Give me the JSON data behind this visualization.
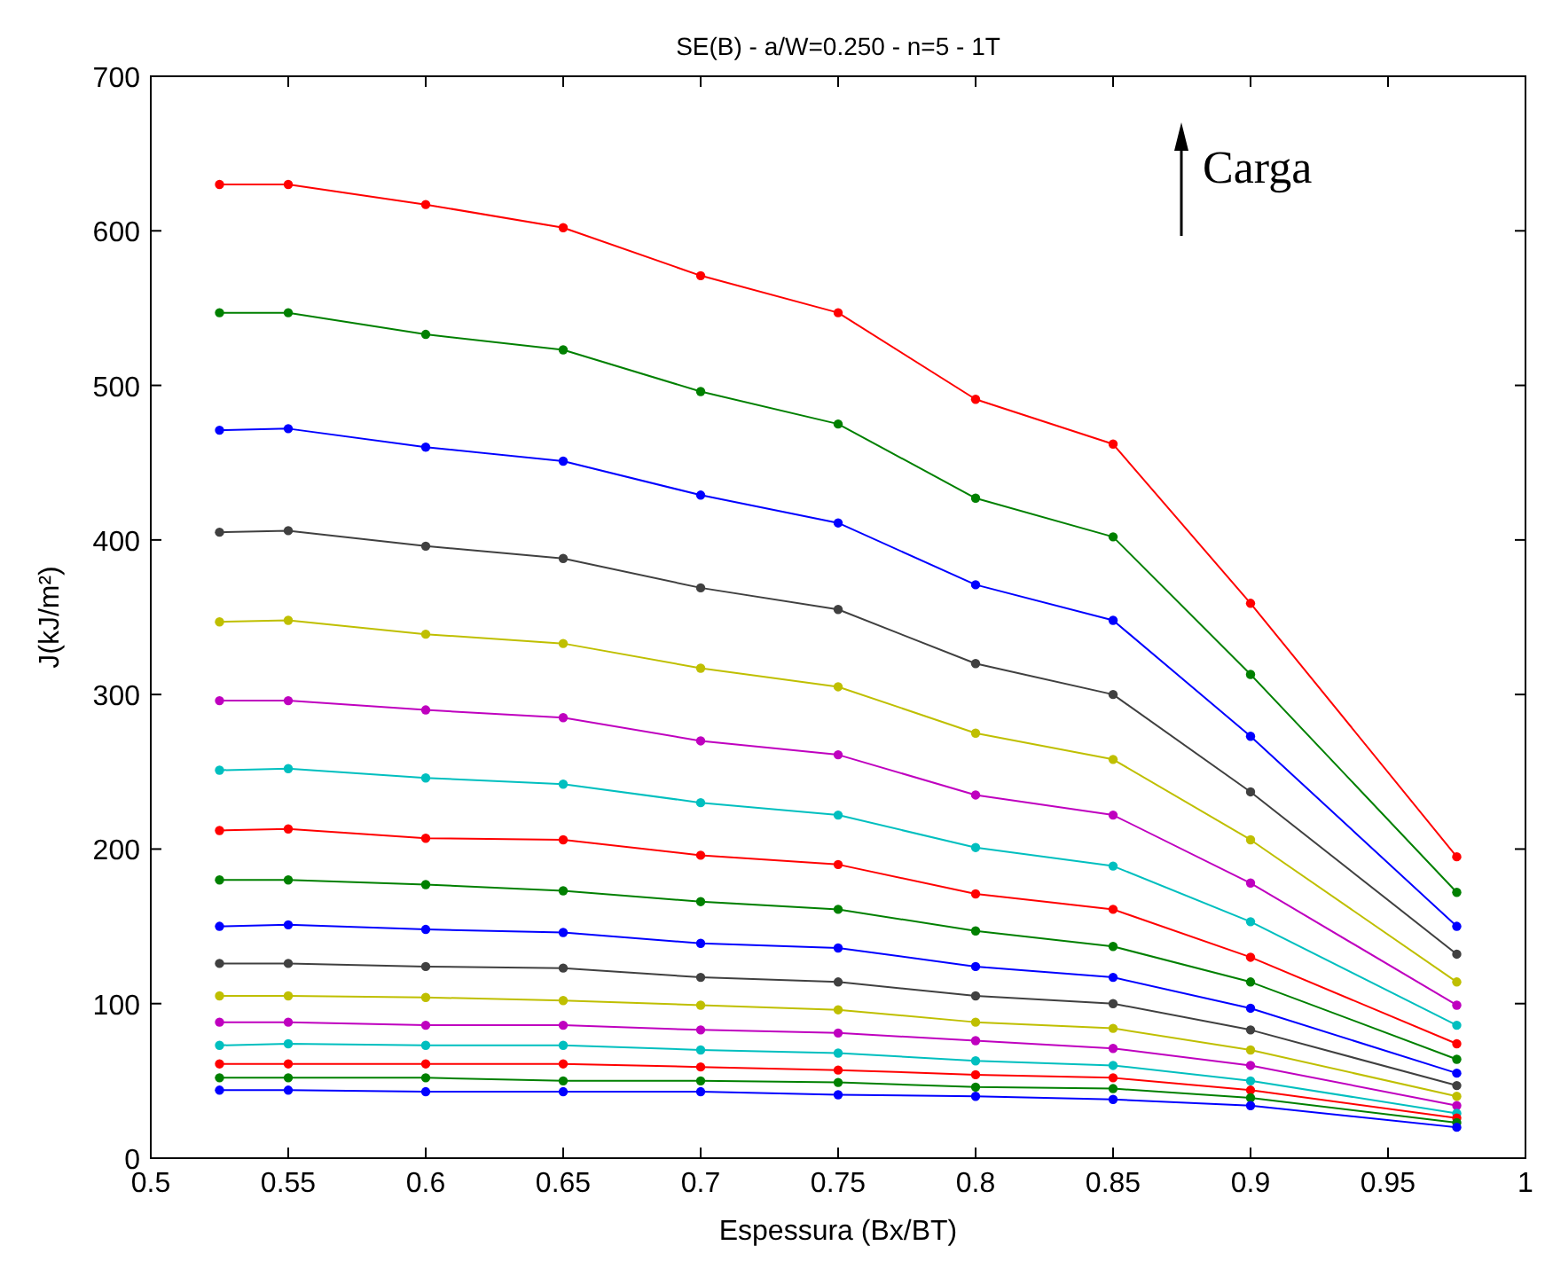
{
  "chart_data": {
    "type": "line",
    "title": "SE(B) - a/W=0.250 - n=5 - 1T",
    "xlabel": "Espessura (Bx/BT)",
    "ylabel": "J(kJ/m²)",
    "x": [
      0.525,
      0.55,
      0.6,
      0.65,
      0.7,
      0.75,
      0.8,
      0.85,
      0.9,
      0.975
    ],
    "xlim": [
      0.5,
      1
    ],
    "xticks": [
      {
        "value": 0.5,
        "label": "0.5"
      },
      {
        "value": 0.55,
        "label": "0.55"
      },
      {
        "value": 0.6,
        "label": "0.6"
      },
      {
        "value": 0.65,
        "label": "0.65"
      },
      {
        "value": 0.7,
        "label": "0.7"
      },
      {
        "value": 0.75,
        "label": "0.75"
      },
      {
        "value": 0.8,
        "label": "0.8"
      },
      {
        "value": 0.85,
        "label": "0.85"
      },
      {
        "value": 0.9,
        "label": "0.9"
      },
      {
        "value": 0.95,
        "label": "0.95"
      },
      {
        "value": 1,
        "label": "1"
      }
    ],
    "ylim": [
      0,
      700
    ],
    "yticks": [
      0,
      100,
      200,
      300,
      400,
      500,
      600,
      700
    ],
    "grid": false,
    "marker": "circle",
    "line_style": "solid",
    "annotations": [
      "Carga"
    ],
    "series": [
      {
        "color": "#ff0000",
        "values": [
          630,
          630,
          617,
          602,
          571,
          547,
          491,
          462,
          359,
          195
        ]
      },
      {
        "color": "#008000",
        "values": [
          547,
          547,
          533,
          523,
          496,
          475,
          427,
          402,
          313,
          172
        ]
      },
      {
        "color": "#0000ff",
        "values": [
          471,
          472,
          460,
          451,
          429,
          411,
          371,
          348,
          273,
          150
        ]
      },
      {
        "color": "#404040",
        "values": [
          405,
          406,
          396,
          388,
          369,
          355,
          320,
          300,
          237,
          132
        ]
      },
      {
        "color": "#bfbf00",
        "values": [
          347,
          348,
          339,
          333,
          317,
          305,
          275,
          258,
          206,
          114
        ]
      },
      {
        "color": "#bf00bf",
        "values": [
          296,
          296,
          290,
          285,
          270,
          261,
          235,
          222,
          178,
          99
        ]
      },
      {
        "color": "#00bfbf",
        "values": [
          251,
          252,
          246,
          242,
          230,
          222,
          201,
          189,
          153,
          86
        ]
      },
      {
        "color": "#ff0000",
        "values": [
          212,
          213,
          207,
          206,
          196,
          190,
          171,
          161,
          130,
          74
        ]
      },
      {
        "color": "#008000",
        "values": [
          180,
          180,
          177,
          173,
          166,
          161,
          147,
          137,
          114,
          64
        ]
      },
      {
        "color": "#0000ff",
        "values": [
          150,
          151,
          148,
          146,
          139,
          136,
          124,
          117,
          97,
          55
        ]
      },
      {
        "color": "#404040",
        "values": [
          126,
          126,
          124,
          123,
          117,
          114,
          105,
          100,
          83,
          47
        ]
      },
      {
        "color": "#bfbf00",
        "values": [
          105,
          105,
          104,
          102,
          99,
          96,
          88,
          84,
          70,
          40
        ]
      },
      {
        "color": "#bf00bf",
        "values": [
          88,
          88,
          86,
          86,
          83,
          81,
          76,
          71,
          60,
          34
        ]
      },
      {
        "color": "#00bfbf",
        "values": [
          73,
          74,
          73,
          73,
          70,
          68,
          63,
          60,
          50,
          29
        ]
      },
      {
        "color": "#ff0000",
        "values": [
          61,
          61,
          61,
          61,
          59,
          57,
          54,
          52,
          44,
          26
        ]
      },
      {
        "color": "#008000",
        "values": [
          52,
          52,
          52,
          50,
          50,
          49,
          46,
          45,
          39,
          23
        ]
      },
      {
        "color": "#0000ff",
        "values": [
          44,
          44,
          43,
          43,
          43,
          41,
          40,
          38,
          34,
          20
        ]
      }
    ]
  }
}
